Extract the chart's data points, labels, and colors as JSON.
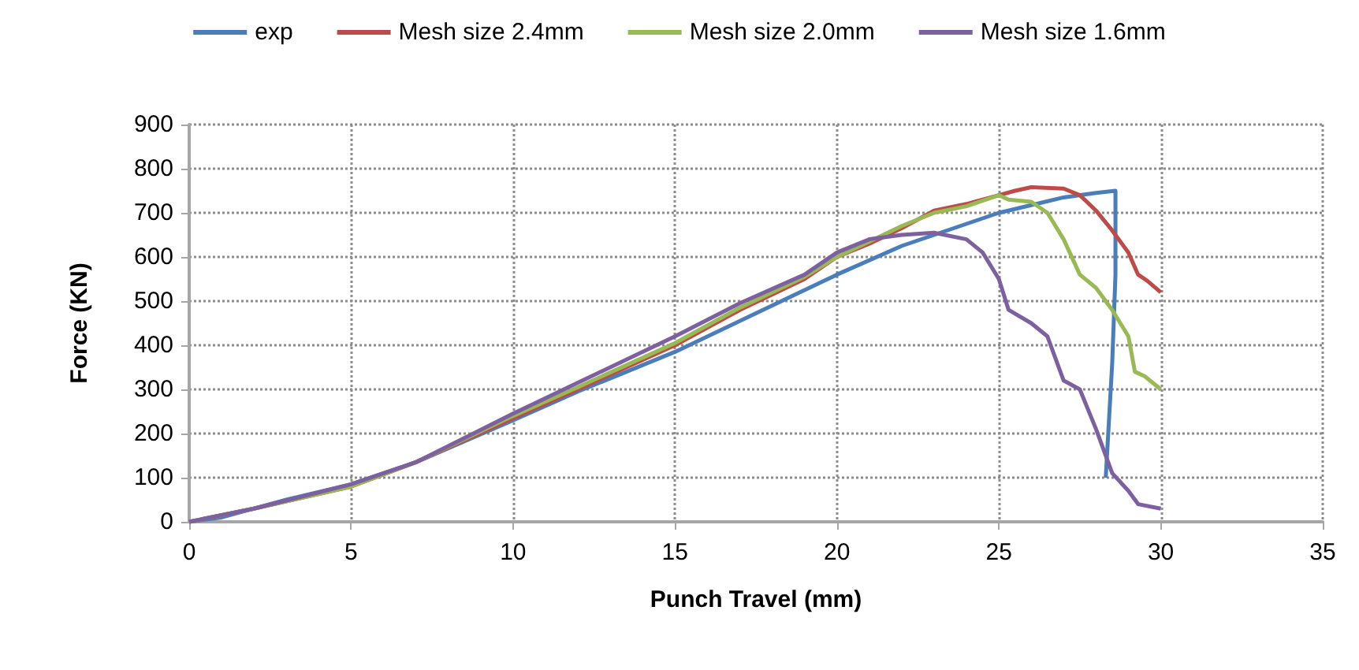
{
  "chart_data": {
    "type": "line",
    "xlabel": "Punch Travel (mm)",
    "ylabel": "Force (KN)",
    "xlim": [
      0,
      35
    ],
    "xticks": [
      0,
      5,
      10,
      15,
      20,
      25,
      30,
      35
    ],
    "ylim": [
      0,
      900
    ],
    "yticks": [
      0,
      100,
      200,
      300,
      400,
      500,
      600,
      700,
      800,
      900
    ],
    "grid": true,
    "legend": "top",
    "marker": "none",
    "line_style": "solid",
    "series": [
      {
        "name": "exp",
        "color": "#4a7ebb",
        "x": [
          0,
          1,
          2,
          3,
          5,
          7,
          10,
          12,
          15,
          17,
          20,
          22,
          25,
          27,
          28,
          28.6,
          28.6,
          28.5,
          28.3
        ],
        "values": [
          0,
          10,
          30,
          50,
          85,
          135,
          230,
          295,
          385,
          455,
          560,
          625,
          700,
          735,
          745,
          750,
          560,
          360,
          100
        ]
      },
      {
        "name": "Mesh size 2.4mm",
        "color": "#be4b48",
        "x": [
          0,
          2,
          5,
          7,
          10,
          12,
          15,
          17,
          19,
          20,
          21,
          22,
          23,
          24,
          25,
          25.5,
          26,
          27,
          27.5,
          28,
          28.5,
          29,
          29.3,
          29.6,
          30
        ],
        "values": [
          0,
          30,
          80,
          135,
          235,
          300,
          400,
          480,
          550,
          600,
          630,
          665,
          705,
          720,
          740,
          750,
          758,
          755,
          740,
          705,
          660,
          610,
          560,
          545,
          520
        ]
      },
      {
        "name": "Mesh size 2.0mm",
        "color": "#98b954",
        "x": [
          0,
          2,
          5,
          7,
          10,
          12,
          15,
          17,
          19,
          20,
          21,
          22,
          23,
          24,
          25,
          25.3,
          26,
          26.5,
          27,
          27.5,
          28,
          28.5,
          29,
          29.2,
          29.5,
          30
        ],
        "values": [
          0,
          30,
          80,
          135,
          240,
          305,
          405,
          485,
          555,
          600,
          635,
          670,
          700,
          715,
          740,
          730,
          725,
          700,
          640,
          560,
          530,
          480,
          420,
          340,
          330,
          300
        ]
      },
      {
        "name": "Mesh size 1.6mm",
        "color": "#7d60a0",
        "x": [
          0,
          2,
          5,
          7,
          10,
          12,
          15,
          17,
          19,
          20,
          21,
          22,
          23,
          24,
          24.5,
          25,
          25.3,
          26,
          26.5,
          27,
          27.5,
          28,
          28.5,
          29,
          29.3,
          30
        ],
        "values": [
          0,
          30,
          85,
          135,
          245,
          315,
          420,
          495,
          560,
          610,
          640,
          650,
          655,
          640,
          610,
          550,
          480,
          450,
          420,
          320,
          300,
          210,
          110,
          70,
          40,
          30
        ]
      }
    ]
  }
}
